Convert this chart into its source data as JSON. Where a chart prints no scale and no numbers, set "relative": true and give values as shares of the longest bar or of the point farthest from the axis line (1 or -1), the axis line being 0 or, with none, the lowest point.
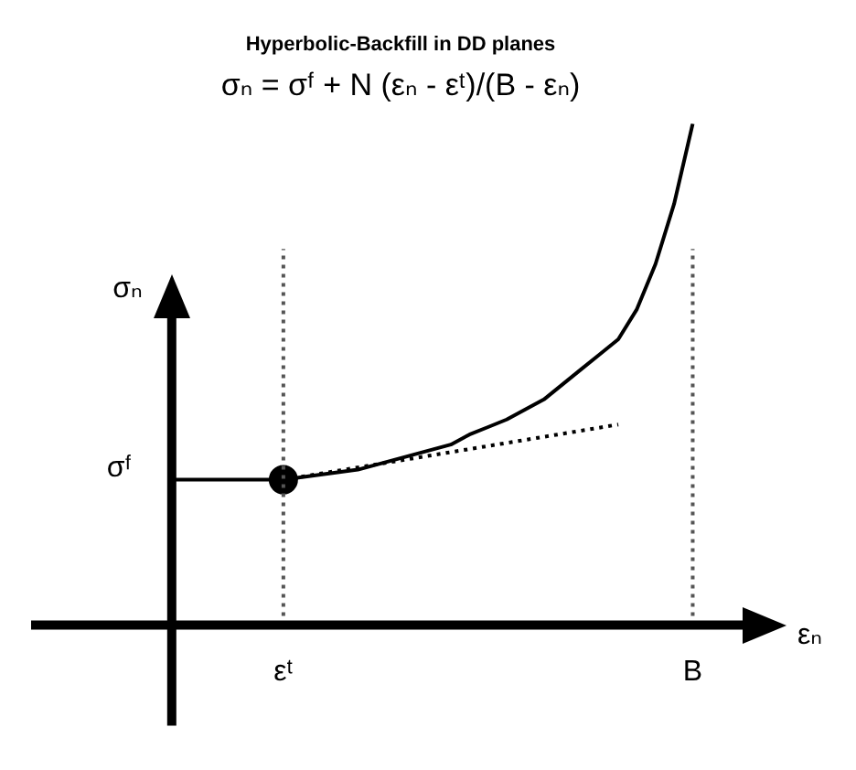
{
  "chart_data": {
    "type": "line",
    "title": "Hyperbolic-Backfill in DD planes",
    "subtitle": "σₙ = σᶠ + N (εₙ - εᵗ)/(B - εₙ)",
    "xlabel": "εₙ",
    "ylabel": "σₙ",
    "relative": true,
    "legend": false,
    "categories": [
      null,
      null,
      null,
      null,
      null,
      null,
      "εᵗ",
      null,
      null,
      null,
      null,
      null,
      null,
      null,
      null,
      null,
      null,
      null,
      null,
      null,
      null,
      null,
      null,
      null,
      null,
      null,
      null,
      null,
      "B"
    ],
    "series": [
      {
        "color": "#000000",
        "marker": "none",
        "line_style": "solid",
        "values": [
          0.29,
          0.29,
          0.29,
          0.29,
          0.29,
          0.29,
          0.29,
          0.295,
          0.3,
          0.305,
          0.31,
          0.32,
          0.33,
          0.34,
          0.35,
          0.36,
          0.38,
          0.395,
          0.41,
          0.43,
          0.45,
          0.48,
          0.51,
          0.54,
          0.57,
          0.63,
          0.72,
          0.84,
          1
        ]
      },
      {
        "color": "#000000",
        "marker": "none",
        "line_style": "dotted",
        "values": [
          null,
          null,
          null,
          null,
          null,
          null,
          0.29,
          null,
          null,
          null,
          null,
          null,
          null,
          null,
          null,
          null,
          null,
          null,
          null,
          null,
          null,
          null,
          null,
          null,
          0.4,
          null,
          null,
          null,
          null
        ]
      },
      {
        "type": "scatter",
        "color": "#000000",
        "marker": "circle",
        "x": [
          "εᵗ"
        ],
        "values": [
          0.29
        ]
      }
    ],
    "ref_lines": [
      {
        "axis": "x",
        "value": "εᵗ",
        "color": "#555555",
        "line_style": "dotted"
      },
      {
        "axis": "x",
        "value": "B",
        "color": "#555555",
        "line_style": "dotted"
      }
    ],
    "annotations": [
      "σᶠ"
    ]
  }
}
